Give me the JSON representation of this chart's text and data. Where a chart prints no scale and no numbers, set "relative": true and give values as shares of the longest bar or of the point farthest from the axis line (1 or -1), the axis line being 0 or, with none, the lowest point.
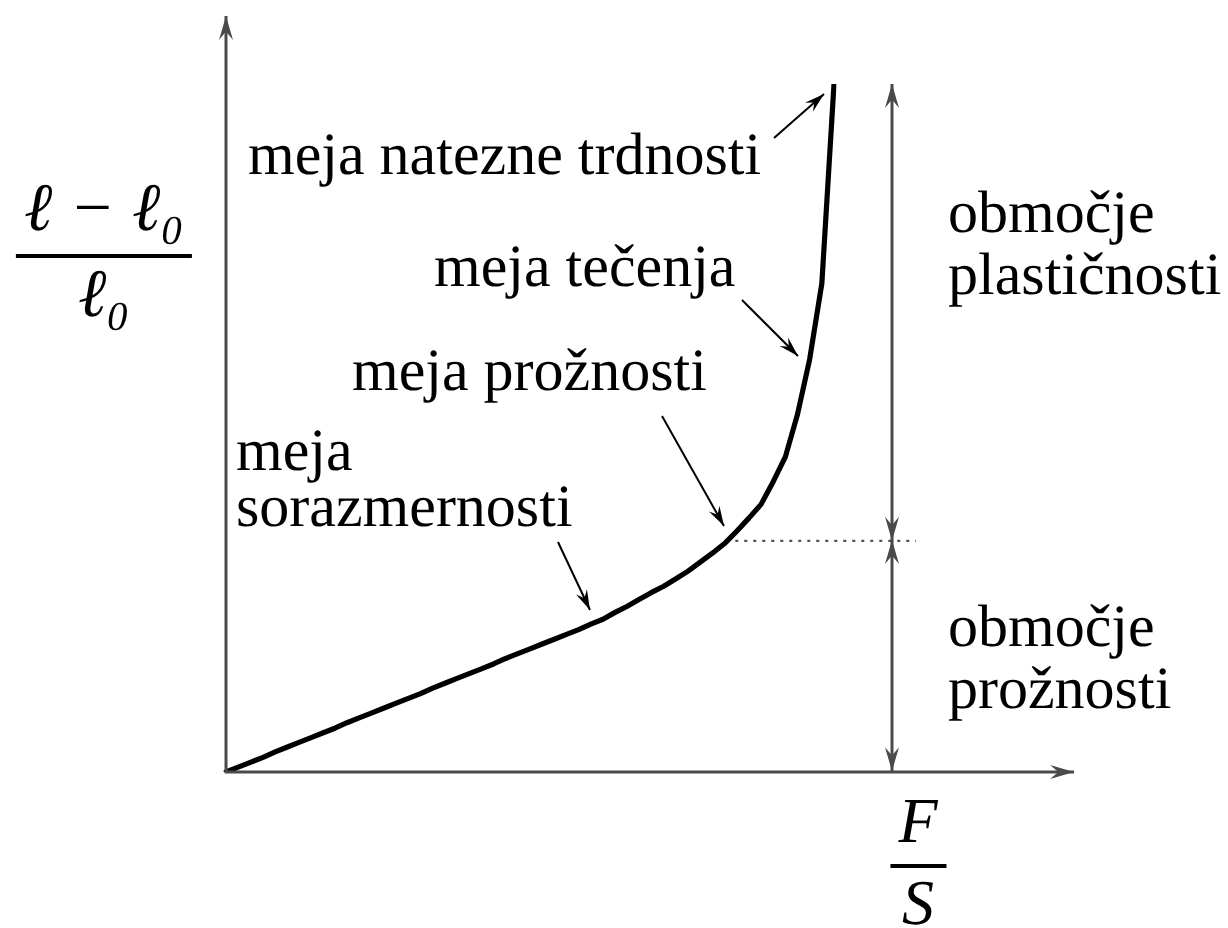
{
  "chart_data": {
    "type": "line",
    "relative": true,
    "categories": [
      null,
      null,
      null,
      null,
      null,
      null,
      null,
      null,
      null,
      null,
      null,
      null,
      null,
      null,
      null,
      null,
      null,
      null,
      null,
      null,
      null,
      null,
      null,
      null,
      null,
      null,
      null,
      null,
      null,
      null,
      null,
      null,
      null,
      null,
      null,
      null,
      null,
      null,
      null,
      null,
      null,
      null,
      null,
      null,
      null,
      null,
      null,
      null,
      null,
      null,
      null
    ],
    "values": [
      0,
      0.007,
      0.014,
      0.021,
      0.029,
      0.036,
      0.043,
      0.05,
      0.057,
      0.064,
      0.072,
      0.079,
      0.086,
      0.093,
      0.1,
      0.107,
      0.114,
      0.122,
      0.129,
      0.136,
      0.143,
      0.15,
      0.157,
      0.165,
      0.172,
      0.179,
      0.186,
      0.193,
      0.2,
      0.207,
      0.215,
      0.222,
      0.232,
      0.241,
      0.251,
      0.261,
      0.27,
      0.281,
      0.292,
      0.305,
      0.318,
      0.332,
      0.35,
      0.369,
      0.389,
      0.422,
      0.458,
      0.52,
      0.6,
      0.71,
      1
    ],
    "color": "#000000",
    "marker": "none",
    "line_style": "solid",
    "tick_labels": false,
    "xlabel": "F/S",
    "ylabel": "ℓ − ℓ₀/ℓ₀",
    "annotations": [
      "meja natezne trdnosti",
      "meja tečenja",
      "meja prožnosti",
      "meja sorazmernosti",
      "območje plastičnosti",
      "območje prožnosti"
    ],
    "ref_lines": [
      {
        "axis": "y",
        "value": 0.336,
        "line_style": "dotted"
      }
    ]
  }
}
